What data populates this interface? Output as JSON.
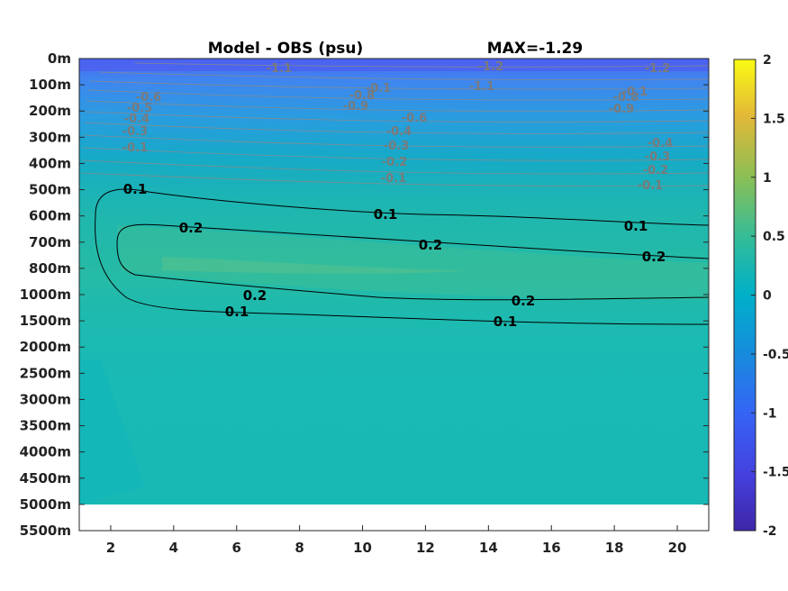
{
  "chart_data": {
    "type": "heatmap",
    "title": "Model - OBS (psu)",
    "max_label": "MAX=-1.29",
    "x_ticks": [
      "2",
      "4",
      "6",
      "8",
      "10",
      "12",
      "14",
      "16",
      "18",
      "20"
    ],
    "x_range": [
      1,
      21
    ],
    "y_ticks": [
      "0m",
      "100m",
      "200m",
      "300m",
      "400m",
      "500m",
      "600m",
      "700m",
      "800m",
      "1000m",
      "1500m",
      "2000m",
      "2500m",
      "3000m",
      "3500m",
      "4000m",
      "4500m",
      "5000m",
      "5500m"
    ],
    "colorbar": {
      "range": [
        -2,
        2
      ],
      "ticks": [
        "2",
        "1.5",
        "1",
        "0.5",
        "0",
        "-0.5",
        "-1",
        "-1.5",
        "-2"
      ]
    },
    "contour_labels_black": [
      "0.1",
      "0.2",
      "0.1",
      "0.2",
      "0.1",
      "0.2",
      "0.2",
      "0.1",
      "0.2",
      "0.1"
    ],
    "contour_labels_gray": [
      "-1.1",
      "-1.2",
      "-1.1",
      "-1.2",
      "-0.6",
      "-0.5",
      "-0.4",
      "-0.3",
      "-0.1",
      "-0.8",
      "-0.1",
      "-0.9",
      "-0.6",
      "-0.4",
      "-0.3",
      "-0.2",
      "-0.1",
      "-0.8",
      "-0.1",
      "-0.9",
      "-0.4",
      "-0.3",
      "-0.2",
      "-0.1"
    ]
  }
}
